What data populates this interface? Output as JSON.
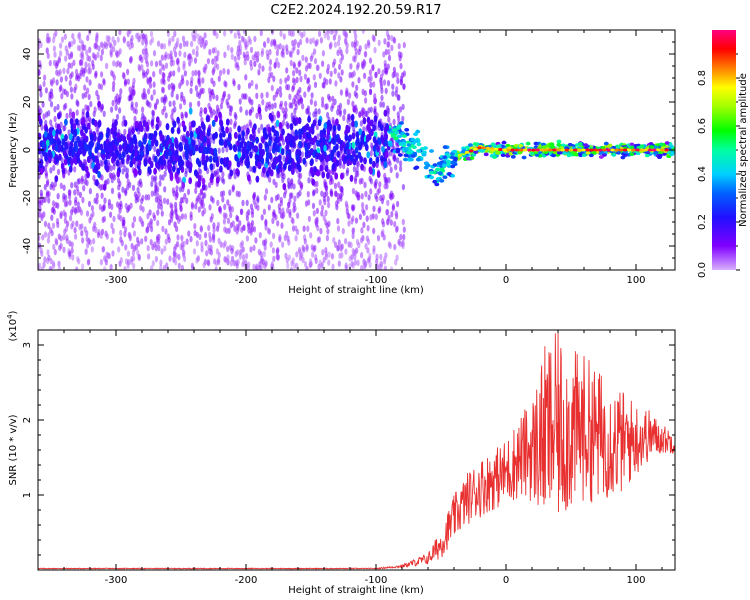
{
  "title": "C2E2.2024.192.20.59.R17",
  "colorbar": {
    "label": "Normalized spectral amplitude",
    "ticks": [
      "0.0",
      "0.2",
      "0.4",
      "0.6",
      "0.8"
    ],
    "tick_values": [
      0.0,
      0.2,
      0.4,
      0.6,
      0.8
    ],
    "range": [
      0,
      1
    ]
  },
  "chart_data": [
    {
      "type": "heatmap",
      "xlabel": "Height of straight line (km)",
      "ylabel": "Frequency (Hz)",
      "xlim": [
        -360,
        130
      ],
      "ylim": [
        -50,
        50
      ],
      "xticks": [
        -300,
        -200,
        -100,
        0,
        100
      ],
      "xtick_labels": [
        "-300",
        "-200",
        "-100",
        "0",
        "100"
      ],
      "yticks": [
        -40,
        -20,
        0,
        20,
        40
      ],
      "ytick_labels": [
        "-40",
        "-20",
        "0",
        "20",
        "40"
      ],
      "ridge": [
        {
          "x": -360,
          "y": 2
        },
        {
          "x": -300,
          "y": 1
        },
        {
          "x": -200,
          "y": 0
        },
        {
          "x": -100,
          "y": 3
        },
        {
          "x": -90,
          "y": 7
        },
        {
          "x": -80,
          "y": 4
        },
        {
          "x": -70,
          "y": 0
        },
        {
          "x": -60,
          "y": -5
        },
        {
          "x": -52,
          "y": -9
        },
        {
          "x": -45,
          "y": -5
        },
        {
          "x": -35,
          "y": -2
        },
        {
          "x": -20,
          "y": 1
        },
        {
          "x": 0,
          "y": 0
        },
        {
          "x": 40,
          "y": 0
        },
        {
          "x": 80,
          "y": 0
        },
        {
          "x": 130,
          "y": 0
        }
      ],
      "spread_hz_low_altitude": 25,
      "core_band_hz": [
        -8,
        8
      ]
    },
    {
      "type": "line",
      "xlabel": "Height of straight line (km)",
      "ylabel": "SNR (10 * v/v)",
      "y_multiplier_label": "(x10",
      "y_multiplier_exp": "4",
      "xlim": [
        -360,
        130
      ],
      "ylim": [
        0,
        3.2
      ],
      "xticks": [
        -300,
        -200,
        -100,
        0,
        100
      ],
      "xtick_labels": [
        "-300",
        "-200",
        "-100",
        "0",
        "100"
      ],
      "yticks": [
        1,
        2,
        3
      ],
      "ytick_labels": [
        "1",
        "2",
        "3"
      ],
      "color": "#e83030",
      "series": [
        {
          "x": [
            -360,
            -100,
            -80,
            -60,
            -50,
            -40,
            -30,
            -20,
            -10,
            0,
            10,
            20,
            30,
            40,
            50,
            60,
            70,
            80,
            90,
            100,
            110,
            120,
            130
          ],
          "y": [
            0.02,
            0.02,
            0.05,
            0.15,
            0.35,
            0.7,
            0.95,
            1.1,
            1.2,
            1.3,
            1.5,
            1.6,
            1.8,
            1.9,
            1.85,
            1.9,
            1.8,
            1.75,
            1.7,
            1.75,
            1.8,
            1.75,
            1.7
          ],
          "amplitude": [
            0.005,
            0.005,
            0.02,
            0.08,
            0.2,
            0.3,
            0.35,
            0.4,
            0.4,
            0.45,
            0.55,
            0.7,
            1.2,
            1.3,
            1.1,
            1.0,
            0.9,
            0.8,
            0.7,
            0.5,
            0.35,
            0.2,
            0.15
          ]
        }
      ]
    }
  ]
}
